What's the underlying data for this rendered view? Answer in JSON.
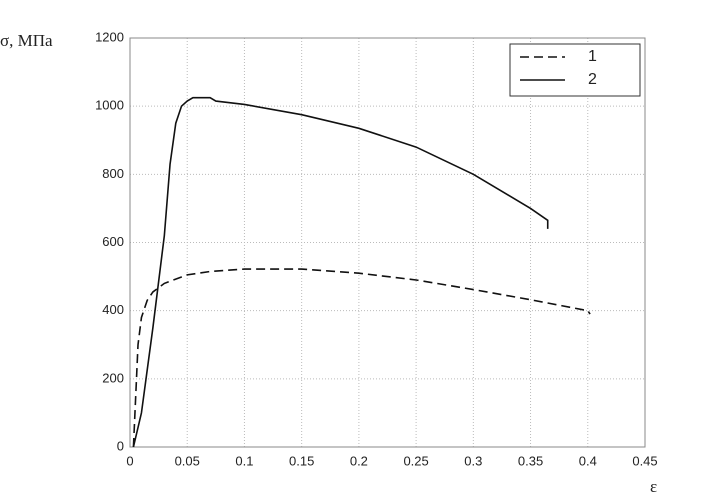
{
  "chart_data": {
    "type": "line",
    "y_label": "σ, МПа",
    "x_label": "ε",
    "xlim": [
      0,
      0.45
    ],
    "xticks": [
      0,
      0.05,
      0.1,
      0.15,
      0.2,
      0.25,
      0.3,
      0.35,
      0.4,
      0.45
    ],
    "ylim": [
      0,
      1200
    ],
    "yticks": [
      0,
      200,
      400,
      600,
      800,
      1000,
      1200
    ],
    "grid": true,
    "legend": "upper right",
    "series": [
      {
        "name": "1",
        "color": "#111111",
        "style": "dashed",
        "x": [
          0.003,
          0.007,
          0.01,
          0.015,
          0.02,
          0.03,
          0.05,
          0.07,
          0.1,
          0.15,
          0.2,
          0.25,
          0.3,
          0.35,
          0.4,
          0.402
        ],
        "values": [
          0,
          300,
          380,
          430,
          455,
          480,
          505,
          515,
          522,
          522,
          510,
          490,
          462,
          432,
          400,
          390
        ]
      },
      {
        "name": "2",
        "color": "#111111",
        "style": "solid",
        "x": [
          0.003,
          0.01,
          0.02,
          0.03,
          0.035,
          0.04,
          0.045,
          0.05,
          0.055,
          0.07,
          0.075,
          0.1,
          0.15,
          0.2,
          0.25,
          0.3,
          0.35,
          0.365,
          0.365
        ],
        "values": [
          0,
          100,
          350,
          620,
          830,
          950,
          1000,
          1015,
          1025,
          1025,
          1015,
          1005,
          975,
          935,
          880,
          800,
          700,
          665,
          640
        ]
      }
    ]
  }
}
